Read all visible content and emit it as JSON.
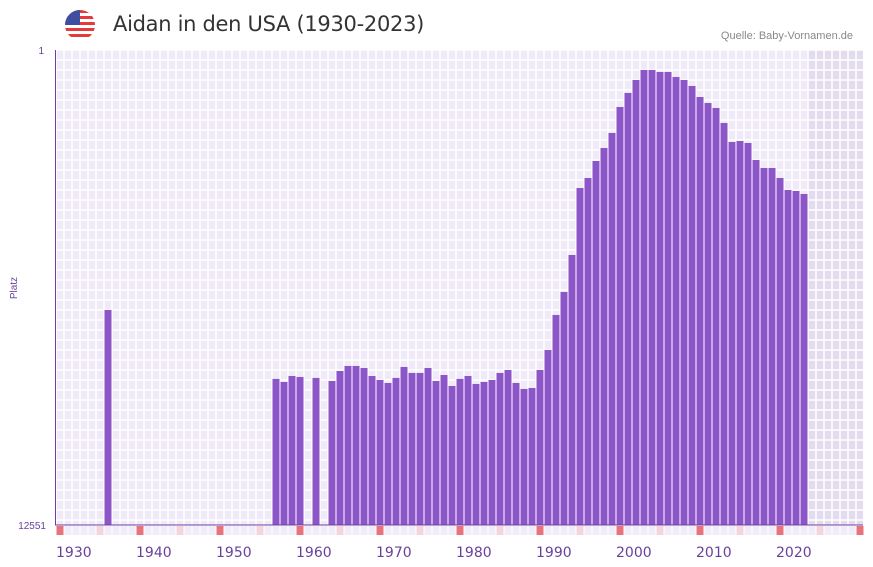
{
  "header": {
    "title": "Aidan in den USA (1930-2023)",
    "source": "Quelle: Baby-Vornamen.de",
    "flag_icon": "us-flag-icon"
  },
  "colors": {
    "bar": "#8c55c8",
    "axis": "#6a3fa0",
    "grid_cell": "#efe9f8",
    "future_region": "#e2dcee",
    "decade_marker": "#e8737a",
    "halfdecade_marker": "#f5d5dc"
  },
  "chart_data": {
    "type": "bar",
    "title": "Aidan in den USA (1930-2023)",
    "xlabel": "",
    "ylabel": "Platz",
    "xlim": [
      1930,
      2030
    ],
    "ylim": [
      12551,
      1
    ],
    "y_ticks": [
      "1",
      "12551"
    ],
    "x_ticks": [
      1930,
      1940,
      1950,
      1960,
      1970,
      1980,
      1990,
      2000,
      2010,
      2020
    ],
    "grid": true,
    "future_region_start": 2024,
    "points": [
      {
        "year": 1936,
        "rank": 6870
      },
      {
        "year": 1957,
        "rank": 8692
      },
      {
        "year": 1958,
        "rank": 8772
      },
      {
        "year": 1959,
        "rank": 8614
      },
      {
        "year": 1960,
        "rank": 8640
      },
      {
        "year": 1962,
        "rank": 8666
      },
      {
        "year": 1964,
        "rank": 8746
      },
      {
        "year": 1965,
        "rank": 8482
      },
      {
        "year": 1966,
        "rank": 8350
      },
      {
        "year": 1967,
        "rank": 8350
      },
      {
        "year": 1968,
        "rank": 8403
      },
      {
        "year": 1969,
        "rank": 8614
      },
      {
        "year": 1970,
        "rank": 8720
      },
      {
        "year": 1971,
        "rank": 8799
      },
      {
        "year": 1972,
        "rank": 8666
      },
      {
        "year": 1973,
        "rank": 8376
      },
      {
        "year": 1974,
        "rank": 8535
      },
      {
        "year": 1975,
        "rank": 8535
      },
      {
        "year": 1976,
        "rank": 8403
      },
      {
        "year": 1977,
        "rank": 8746
      },
      {
        "year": 1978,
        "rank": 8588
      },
      {
        "year": 1979,
        "rank": 8878
      },
      {
        "year": 1980,
        "rank": 8692
      },
      {
        "year": 1981,
        "rank": 8614
      },
      {
        "year": 1982,
        "rank": 8825
      },
      {
        "year": 1983,
        "rank": 8772
      },
      {
        "year": 1984,
        "rank": 8720
      },
      {
        "year": 1985,
        "rank": 8535
      },
      {
        "year": 1986,
        "rank": 8456
      },
      {
        "year": 1987,
        "rank": 8799
      },
      {
        "year": 1988,
        "rank": 8957
      },
      {
        "year": 1989,
        "rank": 8931
      },
      {
        "year": 1990,
        "rank": 8456
      },
      {
        "year": 1991,
        "rank": 7927
      },
      {
        "year": 1992,
        "rank": 7002
      },
      {
        "year": 1993,
        "rank": 6395
      },
      {
        "year": 1994,
        "rank": 5417
      },
      {
        "year": 1995,
        "rank": 3647
      },
      {
        "year": 1996,
        "rank": 3383
      },
      {
        "year": 1997,
        "rank": 2934
      },
      {
        "year": 1998,
        "rank": 2590
      },
      {
        "year": 1999,
        "rank": 2194
      },
      {
        "year": 2000,
        "rank": 1507
      },
      {
        "year": 2001,
        "rank": 1137
      },
      {
        "year": 2002,
        "rank": 794
      },
      {
        "year": 2003,
        "rank": 529
      },
      {
        "year": 2004,
        "rank": 529
      },
      {
        "year": 2005,
        "rank": 582
      },
      {
        "year": 2006,
        "rank": 582
      },
      {
        "year": 2007,
        "rank": 714
      },
      {
        "year": 2008,
        "rank": 794
      },
      {
        "year": 2009,
        "rank": 952
      },
      {
        "year": 2010,
        "rank": 1243
      },
      {
        "year": 2011,
        "rank": 1401
      },
      {
        "year": 2012,
        "rank": 1533
      },
      {
        "year": 2013,
        "rank": 1930
      },
      {
        "year": 2014,
        "rank": 2432
      },
      {
        "year": 2015,
        "rank": 2405
      },
      {
        "year": 2016,
        "rank": 2458
      },
      {
        "year": 2017,
        "rank": 2907
      },
      {
        "year": 2018,
        "rank": 3119
      },
      {
        "year": 2019,
        "rank": 3119
      },
      {
        "year": 2020,
        "rank": 3383
      },
      {
        "year": 2021,
        "rank": 3700
      },
      {
        "year": 2022,
        "rank": 3726
      },
      {
        "year": 2023,
        "rank": 3805
      }
    ]
  }
}
